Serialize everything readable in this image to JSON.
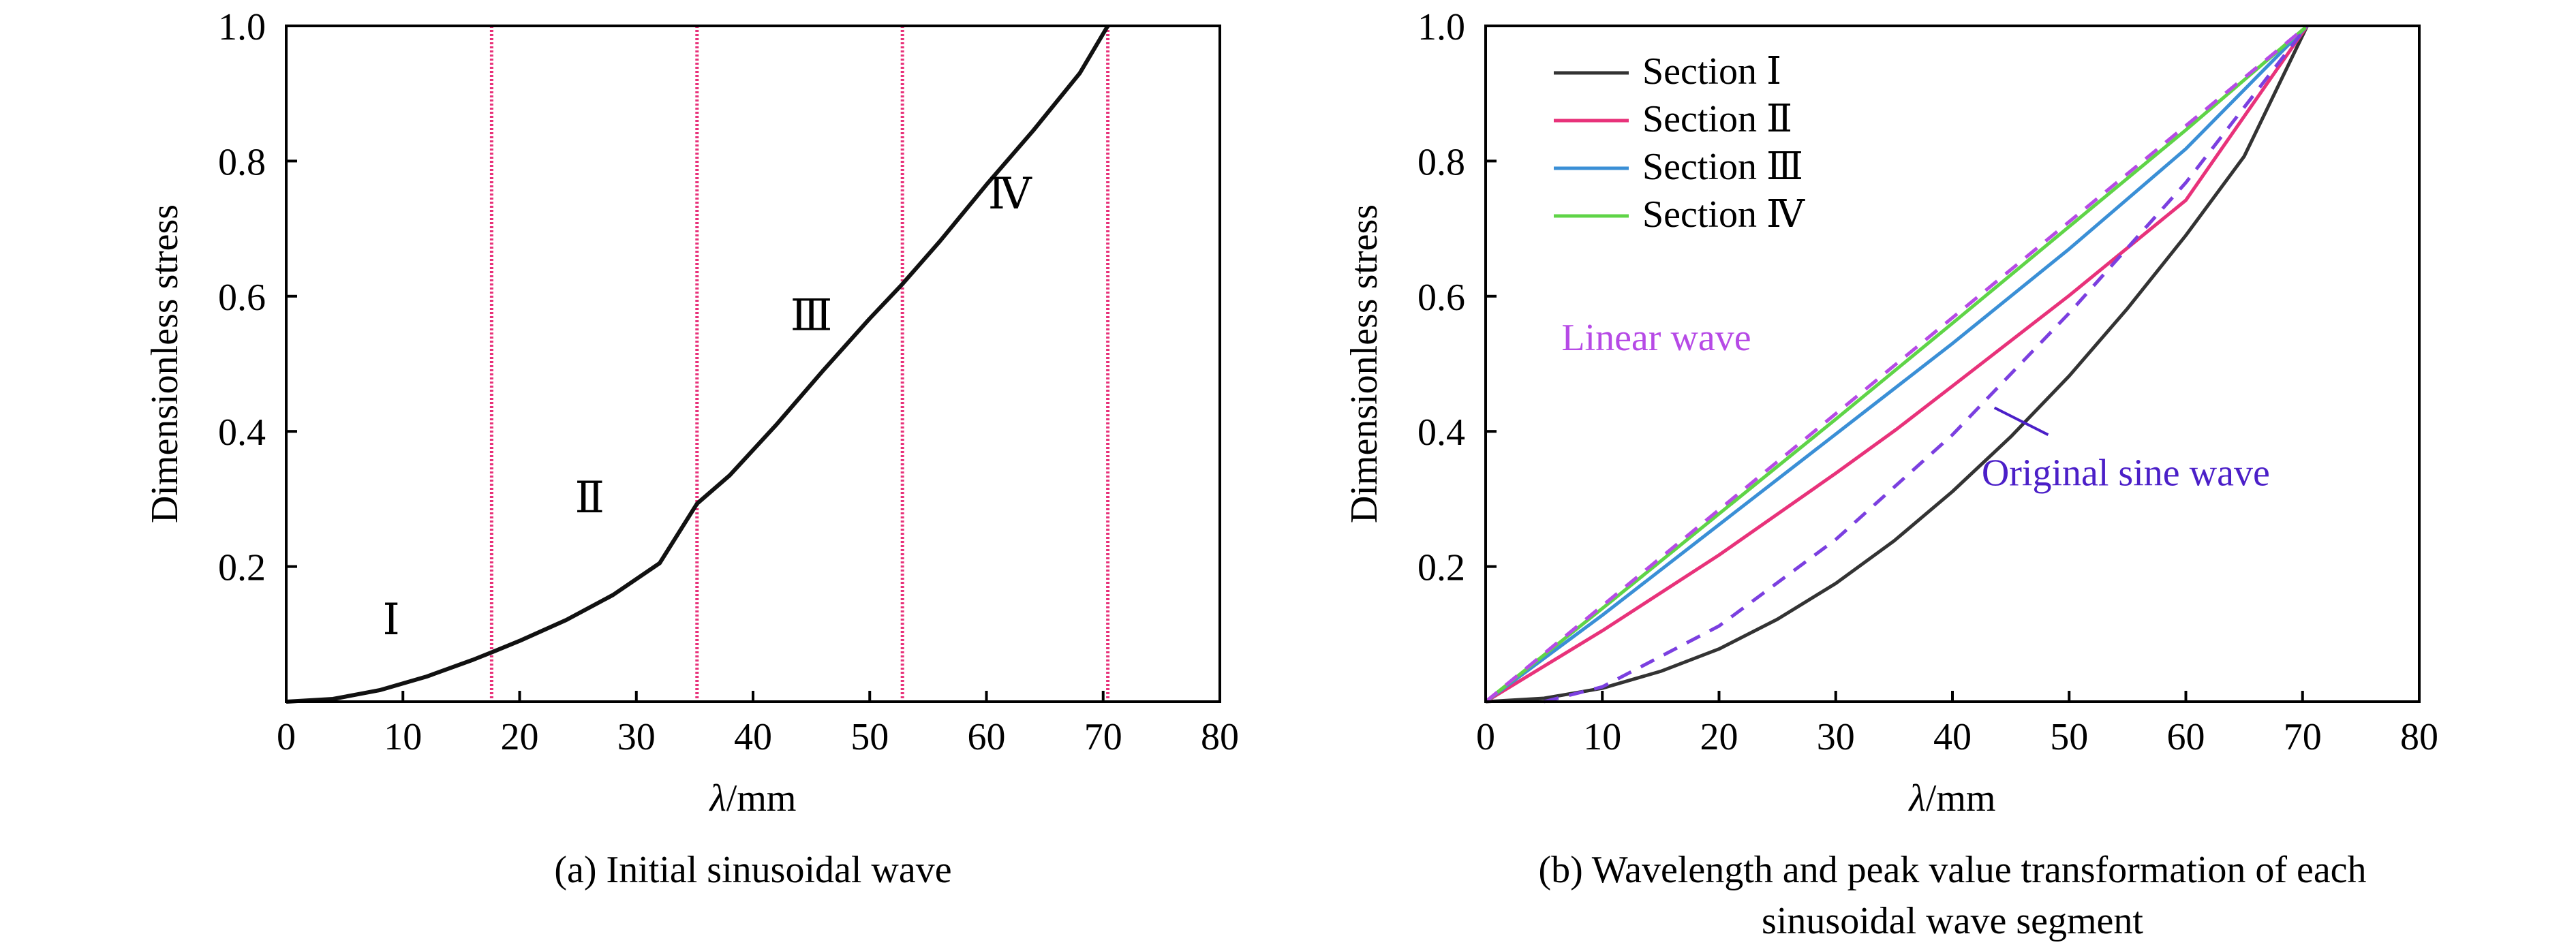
{
  "chart_data": [
    {
      "panel": "a",
      "type": "line",
      "caption": "(a) Initial sinusoidal wave",
      "xlabel_italic": "λ",
      "xlabel_unit": "/mm",
      "ylabel": "Dimensionless stress",
      "xlim": [
        0,
        80
      ],
      "ylim": [
        0,
        1.0
      ],
      "xticks": [
        0,
        10,
        20,
        30,
        40,
        50,
        60,
        70,
        80
      ],
      "yticks": [
        0.2,
        0.4,
        0.6,
        0.8,
        1.0
      ],
      "xtick_labels": [
        "0",
        "10",
        "20",
        "30",
        "40",
        "50",
        "60",
        "70",
        "80"
      ],
      "ytick_labels": [
        "0.2",
        "0.4",
        "0.6",
        "0.8",
        "1.0"
      ],
      "grid": false,
      "vlines": [
        17.6,
        35.2,
        52.8,
        70.4
      ],
      "vline_color": "#e8327a",
      "series": [
        {
          "color": "#111111",
          "x": [
            0,
            4,
            8,
            12,
            16,
            17.6,
            20,
            24,
            28,
            32,
            35.2,
            38,
            42,
            46,
            50,
            52.8,
            56,
            60,
            64,
            68,
            70.4
          ],
          "y": [
            0,
            0.004,
            0.017,
            0.037,
            0.062,
            0.073,
            0.09,
            0.121,
            0.158,
            0.205,
            0.293,
            0.335,
            0.41,
            0.49,
            0.567,
            0.618,
            0.681,
            0.765,
            0.845,
            0.93,
            1.0
          ]
        }
      ],
      "annotations": [
        {
          "text": "Ⅰ",
          "x": 9,
          "y": 0.1
        },
        {
          "text": "Ⅱ",
          "x": 26,
          "y": 0.28
        },
        {
          "text": "Ⅲ",
          "x": 45,
          "y": 0.55
        },
        {
          "text": "Ⅳ",
          "x": 62,
          "y": 0.73
        }
      ]
    },
    {
      "panel": "b",
      "type": "line",
      "caption_lines": [
        "(b) Wavelength and peak value transformation of each",
        "sinusoidal wave segment"
      ],
      "xlabel_italic": "λ",
      "xlabel_unit": "/mm",
      "ylabel": "Dimensionless stress",
      "xlim": [
        0,
        80
      ],
      "ylim": [
        0,
        1.0
      ],
      "xticks": [
        0,
        10,
        20,
        30,
        40,
        50,
        60,
        70,
        80
      ],
      "yticks": [
        0.2,
        0.4,
        0.6,
        0.8,
        1.0
      ],
      "xtick_labels": [
        "0",
        "10",
        "20",
        "30",
        "40",
        "50",
        "60",
        "70",
        "80"
      ],
      "ytick_labels": [
        "0.2",
        "0.4",
        "0.6",
        "0.8",
        "1.0"
      ],
      "grid": false,
      "legend_position": "top-left",
      "series": [
        {
          "name": "Section Ⅰ",
          "color": "#333333",
          "dashed": false,
          "x": [
            0,
            5,
            10,
            15,
            20,
            25,
            30,
            35,
            40,
            45,
            50,
            55,
            60,
            65,
            70.4
          ],
          "y": [
            0,
            0.005,
            0.02,
            0.045,
            0.078,
            0.122,
            0.175,
            0.238,
            0.311,
            0.392,
            0.482,
            0.582,
            0.69,
            0.807,
            1.0
          ]
        },
        {
          "name": "Section Ⅱ",
          "color": "#e8327a",
          "dashed": false,
          "x": [
            0,
            10,
            20,
            30,
            35.2,
            40,
            50,
            60,
            70.4
          ],
          "y": [
            0,
            0.105,
            0.217,
            0.338,
            0.403,
            0.467,
            0.601,
            0.742,
            1.0
          ]
        },
        {
          "name": "Section Ⅲ",
          "color": "#3a8fd6",
          "dashed": false,
          "x": [
            0,
            10,
            20,
            30,
            40,
            50,
            60,
            70.4
          ],
          "y": [
            0,
            0.128,
            0.262,
            0.396,
            0.53,
            0.67,
            0.818,
            1.0
          ]
        },
        {
          "name": "Section Ⅳ",
          "color": "#5fd447",
          "dashed": false,
          "x": [
            0,
            10,
            20,
            30,
            40,
            50,
            60,
            70.4
          ],
          "y": [
            0,
            0.138,
            0.278,
            0.418,
            0.56,
            0.703,
            0.846,
            1.0
          ]
        },
        {
          "name": "Linear wave",
          "color": "#b64ae6",
          "dashed": true,
          "x": [
            0,
            70.4
          ],
          "y": [
            0,
            1.0
          ]
        },
        {
          "name": "Original sine wave",
          "color": "#7b3fe0",
          "dashed": true,
          "x": [
            5,
            10,
            20,
            30,
            40,
            50,
            60,
            70.4
          ],
          "y": [
            0,
            0.022,
            0.112,
            0.24,
            0.395,
            0.575,
            0.768,
            1.0
          ]
        }
      ],
      "annotations": [
        {
          "text": "Linear wave",
          "color": "#b64ae6",
          "x": 6.5,
          "y": 0.52
        },
        {
          "text": "Original sine wave",
          "color": "#4b1fc8",
          "x": 42.5,
          "y": 0.32
        }
      ]
    }
  ]
}
